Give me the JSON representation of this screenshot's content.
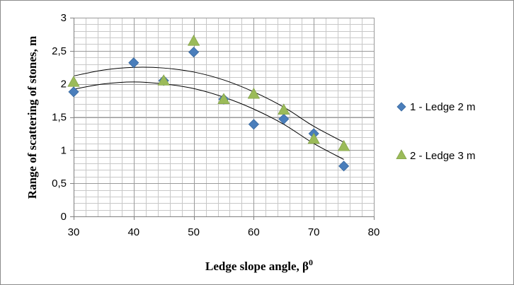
{
  "chart_data": {
    "type": "scatter",
    "title": "",
    "xlabel": "Ledge slope angle, β",
    "xlabel_sup": "0",
    "ylabel": "Range of scattering of stones, m",
    "xlim": [
      30,
      80
    ],
    "ylim": [
      0,
      3
    ],
    "x_major_ticks": [
      30,
      40,
      50,
      60,
      70,
      80
    ],
    "x_tick_labels": [
      "30",
      "40",
      "50",
      "60",
      "70",
      "80"
    ],
    "y_major_ticks": [
      0,
      0.5,
      1,
      1.5,
      2,
      2.5,
      3
    ],
    "y_tick_labels": [
      "0",
      "0,5",
      "1",
      "1,5",
      "2",
      "2,5",
      "3"
    ],
    "x_minor_step": 2,
    "y_minor_step": 0.1,
    "grid": true,
    "legend_position": "right",
    "series": [
      {
        "name": "1 - Ledge 2 m",
        "marker": "diamond",
        "color": "#4a7ebb",
        "x": [
          30,
          40,
          45,
          50,
          55,
          60,
          65,
          70,
          75
        ],
        "y": [
          1.88,
          2.32,
          2.05,
          2.48,
          1.77,
          1.39,
          1.47,
          1.25,
          0.76
        ],
        "trendline": {
          "type": "polynomial",
          "x_range": [
            30,
            75
          ],
          "points": [
            [
              30,
              1.92
            ],
            [
              35,
              2.0
            ],
            [
              40,
              2.03
            ],
            [
              45,
              2.0
            ],
            [
              50,
              1.93
            ],
            [
              55,
              1.8
            ],
            [
              60,
              1.62
            ],
            [
              65,
              1.39
            ],
            [
              70,
              1.1
            ],
            [
              75,
              0.86
            ]
          ]
        }
      },
      {
        "name": "2 - Ledge 3 m",
        "marker": "triangle",
        "color": "#9bbb59",
        "x": [
          30,
          45,
          50,
          55,
          60,
          65,
          70,
          75
        ],
        "y": [
          2.03,
          2.05,
          2.65,
          1.77,
          1.85,
          1.61,
          1.17,
          1.06
        ],
        "trendline": {
          "type": "polynomial",
          "x_range": [
            30,
            75
          ],
          "points": [
            [
              30,
              2.12
            ],
            [
              35,
              2.21
            ],
            [
              40,
              2.25
            ],
            [
              45,
              2.24
            ],
            [
              50,
              2.18
            ],
            [
              55,
              2.06
            ],
            [
              60,
              1.88
            ],
            [
              65,
              1.65
            ],
            [
              70,
              1.36
            ],
            [
              75,
              1.12
            ]
          ]
        }
      }
    ]
  }
}
